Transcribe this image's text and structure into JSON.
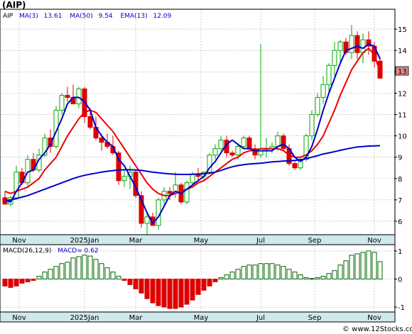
{
  "title": "(AIP)",
  "watermark": "© www.12Stocks.com",
  "legend": {
    "symbol": "AIP",
    "items": [
      {
        "label": "MA(3)",
        "value": "13.61",
        "color": "#0000cc"
      },
      {
        "label": "MA(50)",
        "value": "9.54",
        "color": "#0000cc"
      },
      {
        "label": "EMA(13)",
        "value": "12.09",
        "color": "#0000cc"
      }
    ]
  },
  "macd_legend": {
    "label": "MACD(26,12,9)",
    "value": "MACD= 0.62",
    "label_color": "#000000",
    "value_color": "#0000cc"
  },
  "last_price_label": "13",
  "colors": {
    "panel_bg": "#cfe8ec",
    "up": "#00aa00",
    "down": "#dd0000",
    "ema": "#ee0000",
    "ma": "#0000cc",
    "macd_pos": "#006600",
    "macd_neg": "#dd0000"
  },
  "chart_data": [
    {
      "type": "candlestick",
      "y_axis_ticks": [
        6,
        7,
        8,
        9,
        10,
        11,
        12,
        13,
        14,
        15
      ],
      "ylim": [
        5.4,
        15.9
      ],
      "x_ticks": [
        "Nov",
        "2025Jan",
        "Mar",
        "May",
        "Jul",
        "Sep",
        "Nov"
      ],
      "candles": [
        [
          7.1,
          7.4,
          6.8,
          6.8
        ],
        [
          6.8,
          7.2,
          6.7,
          7.1
        ],
        [
          7.1,
          8.6,
          7.0,
          8.3
        ],
        [
          8.3,
          8.5,
          7.7,
          7.8
        ],
        [
          7.8,
          9.1,
          7.6,
          8.9
        ],
        [
          8.9,
          9.2,
          8.3,
          8.4
        ],
        [
          8.4,
          9.4,
          8.3,
          9.1
        ],
        [
          9.1,
          10.1,
          9.0,
          9.9
        ],
        [
          9.9,
          10.3,
          9.2,
          9.5
        ],
        [
          9.5,
          11.4,
          9.4,
          11.2
        ],
        [
          11.2,
          12.0,
          11.0,
          11.9
        ],
        [
          11.9,
          12.3,
          11.6,
          11.8
        ],
        [
          11.8,
          12.4,
          11.5,
          11.5
        ],
        [
          11.5,
          12.3,
          11.3,
          12.2
        ],
        [
          12.2,
          12.3,
          10.6,
          10.9
        ],
        [
          10.9,
          11.3,
          10.3,
          10.4
        ],
        [
          10.4,
          10.9,
          9.8,
          9.9
        ],
        [
          9.9,
          10.1,
          9.3,
          9.7
        ],
        [
          9.7,
          10.1,
          9.4,
          9.5
        ],
        [
          9.5,
          10.0,
          9.1,
          9.2
        ],
        [
          9.2,
          9.3,
          7.7,
          7.9
        ],
        [
          7.9,
          8.4,
          7.6,
          8.1
        ],
        [
          8.1,
          8.6,
          7.5,
          8.3
        ],
        [
          8.3,
          8.4,
          7.1,
          7.2
        ],
        [
          7.2,
          7.4,
          5.7,
          5.9
        ],
        [
          5.9,
          6.4,
          5.3,
          6.2
        ],
        [
          6.2,
          6.4,
          5.8,
          5.8
        ],
        [
          5.8,
          7.1,
          5.6,
          7.0
        ],
        [
          7.0,
          7.6,
          6.8,
          7.4
        ],
        [
          7.4,
          7.6,
          7.0,
          7.3
        ],
        [
          7.3,
          8.3,
          7.1,
          7.7
        ],
        [
          7.7,
          7.8,
          6.8,
          6.9
        ],
        [
          6.9,
          7.9,
          6.8,
          7.8
        ],
        [
          7.8,
          8.3,
          7.7,
          8.2
        ],
        [
          8.2,
          8.5,
          7.9,
          8.1
        ],
        [
          8.1,
          8.3,
          7.9,
          8.3
        ],
        [
          8.3,
          9.2,
          8.2,
          9.1
        ],
        [
          9.1,
          9.6,
          8.9,
          9.4
        ],
        [
          9.4,
          10.0,
          9.3,
          9.8
        ],
        [
          9.8,
          10.0,
          9.0,
          9.2
        ],
        [
          9.2,
          9.3,
          9.0,
          9.1
        ],
        [
          9.1,
          9.6,
          8.9,
          9.5
        ],
        [
          9.5,
          10.0,
          9.4,
          9.9
        ],
        [
          9.9,
          10.0,
          9.4,
          9.4
        ],
        [
          9.4,
          9.6,
          8.9,
          9.1
        ],
        [
          9.1,
          14.3,
          9.0,
          9.4
        ],
        [
          9.4,
          9.9,
          9.0,
          9.4
        ],
        [
          9.4,
          9.7,
          9.2,
          9.5
        ],
        [
          9.5,
          10.2,
          9.3,
          10.0
        ],
        [
          10.0,
          10.1,
          9.3,
          9.4
        ],
        [
          9.4,
          9.6,
          8.6,
          8.7
        ],
        [
          8.7,
          8.8,
          8.4,
          8.5
        ],
        [
          8.5,
          9.0,
          8.4,
          8.9
        ],
        [
          8.9,
          10.1,
          8.8,
          10.0
        ],
        [
          10.0,
          11.2,
          9.8,
          11.0
        ],
        [
          11.0,
          12.0,
          10.9,
          11.8
        ],
        [
          11.8,
          12.8,
          11.5,
          12.4
        ],
        [
          12.4,
          13.4,
          12.0,
          13.3
        ],
        [
          13.3,
          14.4,
          12.8,
          14.0
        ],
        [
          14.0,
          14.5,
          13.5,
          14.4
        ],
        [
          14.4,
          14.6,
          13.8,
          13.9
        ],
        [
          13.9,
          15.2,
          13.6,
          14.7
        ],
        [
          14.7,
          14.9,
          13.6,
          13.9
        ],
        [
          13.9,
          14.8,
          13.4,
          14.5
        ],
        [
          14.5,
          14.9,
          13.8,
          14.2
        ],
        [
          14.2,
          14.4,
          13.2,
          13.5
        ],
        [
          13.5,
          13.7,
          12.7,
          12.7
        ]
      ],
      "series": [
        {
          "name": "EMA(13)",
          "color": "#ee0000",
          "values": [
            7.4,
            7.3,
            7.4,
            7.5,
            7.6,
            7.8,
            8.0,
            8.4,
            8.7,
            9.0,
            9.5,
            10.0,
            10.4,
            10.8,
            11.1,
            11.2,
            11.1,
            10.8,
            10.5,
            10.2,
            9.8,
            9.4,
            9.0,
            8.6,
            8.2,
            7.8,
            7.5,
            7.3,
            7.2,
            7.2,
            7.3,
            7.4,
            7.5,
            7.6,
            7.8,
            7.9,
            8.1,
            8.3,
            8.5,
            8.7,
            8.9,
            9.0,
            9.2,
            9.3,
            9.3,
            9.4,
            9.4,
            9.4,
            9.4,
            9.3,
            9.1,
            9.0,
            9.0,
            9.1,
            9.3,
            9.6,
            10.0,
            10.6,
            11.2,
            11.9,
            12.5,
            13.1,
            13.5,
            13.9,
            14.1,
            13.8,
            13.0
          ]
        },
        {
          "name": "MA(3)",
          "color": "#0000cc",
          "values": [
            7.0,
            6.9,
            7.4,
            7.8,
            8.3,
            8.4,
            8.9,
            9.2,
            9.6,
            10.2,
            10.8,
            11.5,
            11.8,
            11.8,
            11.6,
            11.2,
            10.4,
            10.0,
            9.7,
            9.5,
            8.9,
            8.6,
            8.1,
            7.6,
            7.0,
            6.4,
            5.9,
            6.2,
            6.7,
            7.2,
            7.4,
            7.3,
            7.5,
            7.7,
            7.9,
            8.1,
            8.5,
            8.8,
            9.2,
            9.6,
            9.8,
            9.6,
            9.4,
            9.4,
            9.3,
            9.3,
            9.3,
            9.3,
            9.5,
            9.6,
            9.4,
            9.0,
            8.8,
            9.0,
            9.5,
            10.3,
            11.2,
            12.0,
            12.7,
            13.4,
            14.0,
            14.1,
            14.2,
            14.1,
            14.3,
            14.2,
            13.6
          ]
        },
        {
          "name": "MA(50)",
          "color": "#0000cc",
          "values": [
            6.95,
            7.0,
            7.06,
            7.13,
            7.2,
            7.3,
            7.4,
            7.5,
            7.6,
            7.7,
            7.8,
            7.9,
            8.0,
            8.08,
            8.15,
            8.2,
            8.25,
            8.3,
            8.34,
            8.37,
            8.4,
            8.41,
            8.41,
            8.4,
            8.38,
            8.34,
            8.3,
            8.27,
            8.24,
            8.22,
            8.2,
            8.19,
            8.19,
            8.2,
            8.21,
            8.23,
            8.25,
            8.3,
            8.38,
            8.47,
            8.55,
            8.61,
            8.65,
            8.68,
            8.7,
            8.72,
            8.75,
            8.78,
            8.8,
            8.82,
            8.83,
            8.85,
            8.88,
            8.93,
            9.0,
            9.07,
            9.15,
            9.2,
            9.26,
            9.32,
            9.38,
            9.43,
            9.48,
            9.5,
            9.52,
            9.53,
            9.54
          ]
        },
        {
          "name": "EMA-upper",
          "color": "#0000cc",
          "values": []
        }
      ]
    },
    {
      "type": "bar",
      "name": "MACD(26,12,9)",
      "y_axis_ticks": [
        -1,
        0,
        1
      ],
      "ylim": [
        -1.15,
        1.2
      ],
      "x_ticks": [
        "Nov",
        "2025Jan",
        "Mar",
        "May",
        "Jul",
        "Sep",
        "Nov"
      ],
      "values": [
        -0.25,
        -0.3,
        -0.25,
        -0.15,
        -0.1,
        -0.05,
        0.1,
        0.25,
        0.35,
        0.45,
        0.55,
        0.6,
        0.75,
        0.8,
        0.85,
        0.82,
        0.7,
        0.55,
        0.4,
        0.25,
        0.1,
        -0.05,
        -0.2,
        -0.35,
        -0.5,
        -0.7,
        -0.85,
        -0.95,
        -1.0,
        -1.05,
        -1.05,
        -1.0,
        -0.9,
        -0.75,
        -0.55,
        -0.4,
        -0.25,
        -0.1,
        0.05,
        0.15,
        0.25,
        0.35,
        0.45,
        0.5,
        0.5,
        0.55,
        0.55,
        0.55,
        0.5,
        0.45,
        0.35,
        0.25,
        0.15,
        0.05,
        0.02,
        0.05,
        0.1,
        0.2,
        0.3,
        0.5,
        0.65,
        0.85,
        0.9,
        0.95,
        1.0,
        0.95,
        0.62
      ]
    }
  ]
}
